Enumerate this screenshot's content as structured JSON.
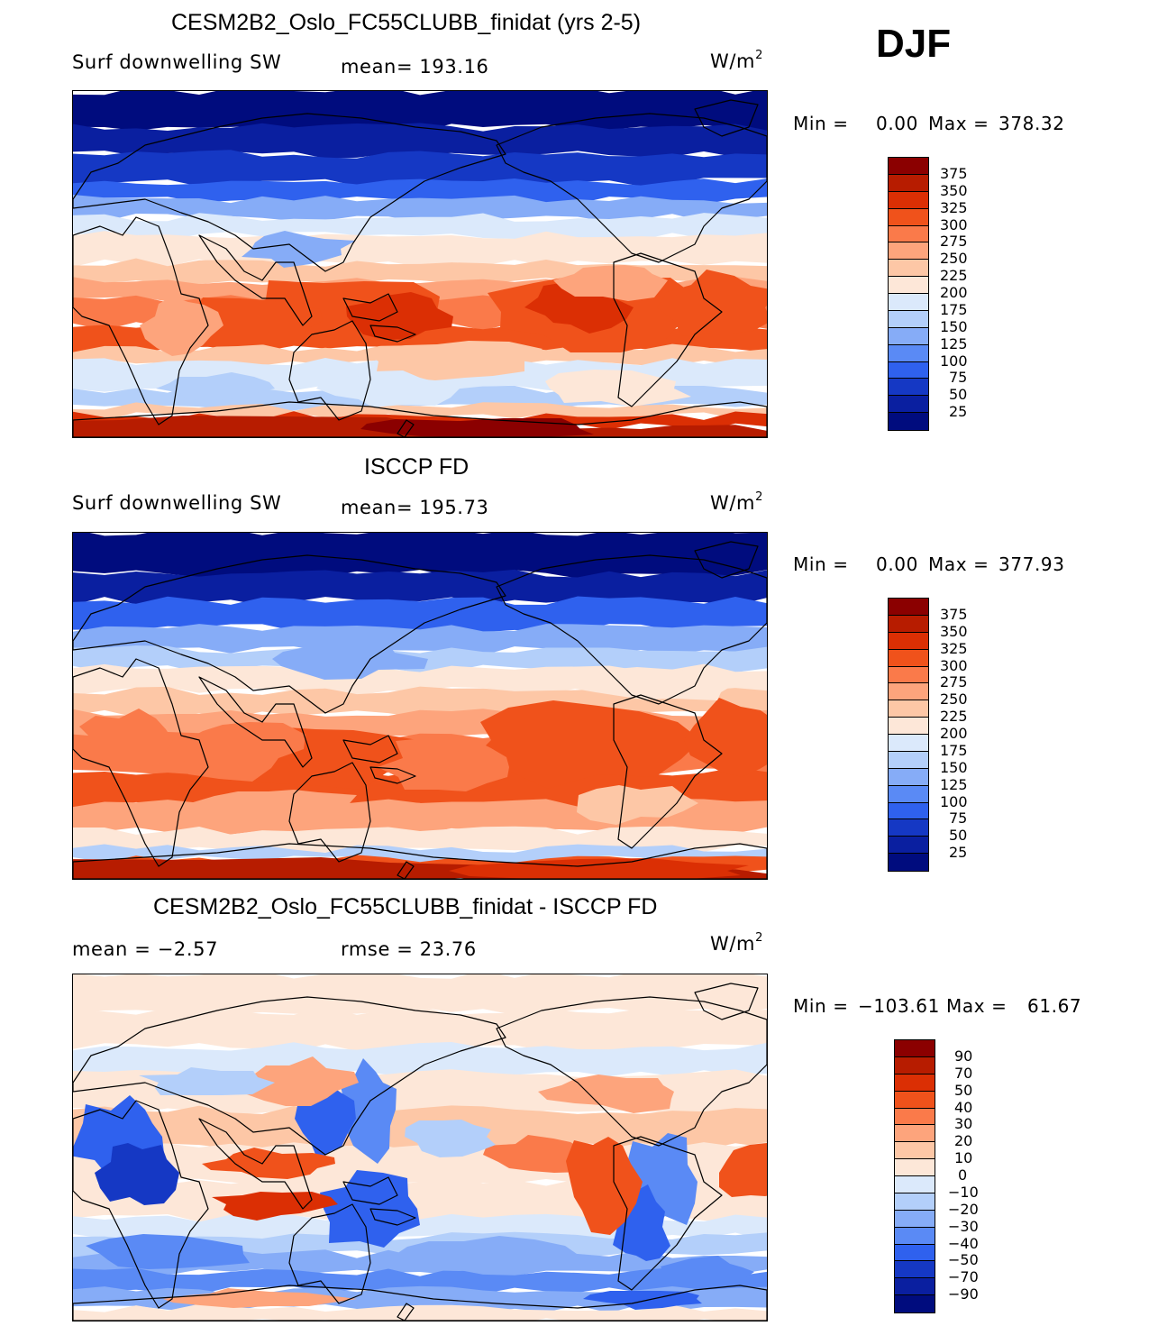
{
  "season": "DJF",
  "chart_data": [
    {
      "type": "heatmap",
      "title": "CESM2B2_Oslo_FC55CLUBB_finidat (yrs 2-5)",
      "variable": "Surf downwelling SW",
      "stat_text": "mean=  193.16",
      "units_base": "W/m",
      "units_exp": "2",
      "min_label": "Min =",
      "min_value": "0.00",
      "max_label": "Max =",
      "max_value": "378.32",
      "levels": [
        "375",
        "350",
        "325",
        "300",
        "275",
        "250",
        "225",
        "200",
        "175",
        "150",
        "125",
        "100",
        "75",
        "50",
        "25"
      ],
      "colors": [
        "#8b0000",
        "#b71c00",
        "#db2f04",
        "#f0521b",
        "#fa7a4a",
        "#fda47c",
        "#fdc7a6",
        "#fde7d8",
        "#dbe9fb",
        "#b3cffa",
        "#86acf7",
        "#5a8af5",
        "#2f61ee",
        "#1538c4",
        "#0a1fa0",
        "#000c7e"
      ]
    },
    {
      "type": "heatmap",
      "title": "ISCCP FD",
      "variable": "Surf downwelling SW",
      "stat_text": "mean=  195.73",
      "units_base": "W/m",
      "units_exp": "2",
      "min_label": "Min =",
      "min_value": "0.00",
      "max_label": "Max =",
      "max_value": "377.93",
      "levels": [
        "375",
        "350",
        "325",
        "300",
        "275",
        "250",
        "225",
        "200",
        "175",
        "150",
        "125",
        "100",
        "75",
        "50",
        "25"
      ],
      "colors": [
        "#8b0000",
        "#b71c00",
        "#db2f04",
        "#f0521b",
        "#fa7a4a",
        "#fda47c",
        "#fdc7a6",
        "#fde7d8",
        "#dbe9fb",
        "#b3cffa",
        "#86acf7",
        "#5a8af5",
        "#2f61ee",
        "#1538c4",
        "#0a1fa0",
        "#000c7e"
      ]
    },
    {
      "type": "heatmap",
      "title": "CESM2B2_Oslo_FC55CLUBB_finidat - ISCCP FD",
      "stat_left": "mean =   −2.57",
      "stat_text": "rmse =   23.76",
      "units_base": "W/m",
      "units_exp": "2",
      "min_label": "Min =",
      "min_value": "−103.61",
      "max_label": "Max =",
      "max_value": "61.67",
      "levels": [
        "90",
        "70",
        "50",
        "40",
        "30",
        "20",
        "10",
        "0",
        "−10",
        "−20",
        "−30",
        "−40",
        "−50",
        "−70",
        "−90"
      ],
      "colors": [
        "#8b0000",
        "#b71c00",
        "#db2f04",
        "#f0521b",
        "#fa7a4a",
        "#fda47c",
        "#fdc7a6",
        "#fde7d8",
        "#dbe9fb",
        "#b3cffa",
        "#86acf7",
        "#5a8af5",
        "#2f61ee",
        "#1538c4",
        "#0a1fa0",
        "#000c7e"
      ]
    }
  ]
}
